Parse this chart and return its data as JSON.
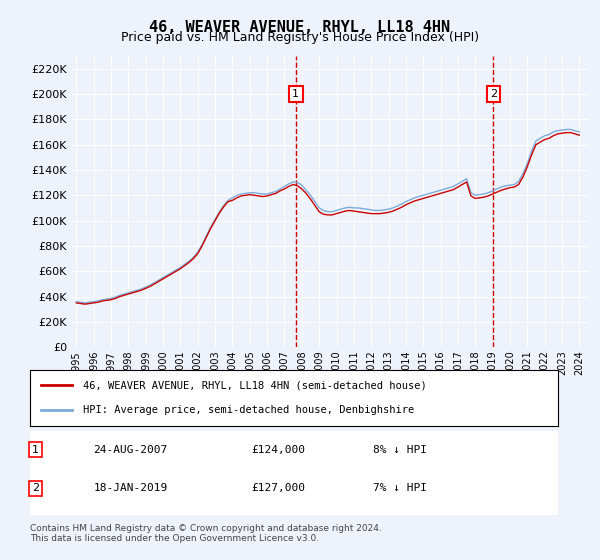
{
  "title": "46, WEAVER AVENUE, RHYL, LL18 4HN",
  "subtitle": "Price paid vs. HM Land Registry's House Price Index (HPI)",
  "ylabel": "",
  "bg_color": "#eef3fb",
  "plot_bg_color": "#eef3fb",
  "grid_color": "#ffffff",
  "hpi_color": "#7aacd6",
  "price_color": "#cc0000",
  "dashed_color": "#cc0000",
  "ylim": [
    0,
    230000
  ],
  "yticks": [
    0,
    20000,
    40000,
    60000,
    80000,
    100000,
    120000,
    140000,
    160000,
    180000,
    200000,
    220000
  ],
  "year_start": 1995,
  "year_end": 2024,
  "sale1_year": 2007.648,
  "sale1_price": 124000,
  "sale2_year": 2019.046,
  "sale2_price": 127000,
  "legend_label1": "46, WEAVER AVENUE, RHYL, LL18 4HN (semi-detached house)",
  "legend_label2": "HPI: Average price, semi-detached house, Denbighshire",
  "annotation1_label": "1",
  "annotation2_label": "2",
  "table_row1": [
    "1",
    "24-AUG-2007",
    "£124,000",
    "8% ↓ HPI"
  ],
  "table_row2": [
    "2",
    "18-JAN-2019",
    "£127,000",
    "7% ↓ HPI"
  ],
  "footer": "Contains HM Land Registry data © Crown copyright and database right 2024.\nThis data is licensed under the Open Government Licence v3.0.",
  "hpi_data_years": [
    1995.0,
    1995.25,
    1995.5,
    1995.75,
    1996.0,
    1996.25,
    1996.5,
    1996.75,
    1997.0,
    1997.25,
    1997.5,
    1997.75,
    1998.0,
    1998.25,
    1998.5,
    1998.75,
    1999.0,
    1999.25,
    1999.5,
    1999.75,
    2000.0,
    2000.25,
    2000.5,
    2000.75,
    2001.0,
    2001.25,
    2001.5,
    2001.75,
    2002.0,
    2002.25,
    2002.5,
    2002.75,
    2003.0,
    2003.25,
    2003.5,
    2003.75,
    2004.0,
    2004.25,
    2004.5,
    2004.75,
    2005.0,
    2005.25,
    2005.5,
    2005.75,
    2006.0,
    2006.25,
    2006.5,
    2006.75,
    2007.0,
    2007.25,
    2007.5,
    2007.75,
    2008.0,
    2008.25,
    2008.5,
    2008.75,
    2009.0,
    2009.25,
    2009.5,
    2009.75,
    2010.0,
    2010.25,
    2010.5,
    2010.75,
    2011.0,
    2011.25,
    2011.5,
    2011.75,
    2012.0,
    2012.25,
    2012.5,
    2012.75,
    2013.0,
    2013.25,
    2013.5,
    2013.75,
    2014.0,
    2014.25,
    2014.5,
    2014.75,
    2015.0,
    2015.25,
    2015.5,
    2015.75,
    2016.0,
    2016.25,
    2016.5,
    2016.75,
    2017.0,
    2017.25,
    2017.5,
    2017.75,
    2018.0,
    2018.25,
    2018.5,
    2018.75,
    2019.0,
    2019.25,
    2019.5,
    2019.75,
    2020.0,
    2020.25,
    2020.5,
    2020.75,
    2021.0,
    2021.25,
    2021.5,
    2021.75,
    2022.0,
    2022.25,
    2022.5,
    2022.75,
    2023.0,
    2023.25,
    2023.5,
    2023.75,
    2024.0
  ],
  "hpi_values": [
    36000,
    35500,
    35000,
    35500,
    36000,
    36500,
    37500,
    38000,
    38500,
    39500,
    41000,
    42000,
    43000,
    44000,
    45000,
    46000,
    47500,
    49000,
    51000,
    53000,
    55000,
    57000,
    59000,
    61000,
    63000,
    65500,
    68000,
    71000,
    75000,
    81000,
    88000,
    95000,
    101000,
    107000,
    112000,
    116000,
    118000,
    120000,
    121000,
    121500,
    122000,
    122000,
    121500,
    121000,
    121000,
    122000,
    123000,
    125000,
    127000,
    129000,
    130500,
    130000,
    128000,
    124000,
    120000,
    115000,
    110000,
    108000,
    107000,
    107000,
    108000,
    109000,
    110000,
    110500,
    110000,
    110000,
    109500,
    109000,
    108500,
    108000,
    108000,
    108500,
    109000,
    110000,
    111500,
    113000,
    115000,
    116500,
    118000,
    119000,
    120000,
    121000,
    122000,
    123000,
    124000,
    125000,
    126000,
    127000,
    129000,
    131000,
    133000,
    122000,
    120000,
    120500,
    121000,
    122000,
    123500,
    125000,
    126500,
    127500,
    128000,
    128500,
    131000,
    137000,
    145000,
    155000,
    163000,
    165000,
    167000,
    168000,
    170000,
    171000,
    171500,
    172000,
    172000,
    171000,
    170000
  ],
  "price_data_years": [
    1995.0,
    1995.25,
    1995.5,
    1995.75,
    1996.0,
    1996.25,
    1996.5,
    1996.75,
    1997.0,
    1997.25,
    1997.5,
    1997.75,
    1998.0,
    1998.25,
    1998.5,
    1998.75,
    1999.0,
    1999.25,
    1999.5,
    1999.75,
    2000.0,
    2000.25,
    2000.5,
    2000.75,
    2001.0,
    2001.25,
    2001.5,
    2001.75,
    2002.0,
    2002.25,
    2002.5,
    2002.75,
    2003.0,
    2003.25,
    2003.5,
    2003.75,
    2004.0,
    2004.25,
    2004.5,
    2004.75,
    2005.0,
    2005.25,
    2005.5,
    2005.75,
    2006.0,
    2006.25,
    2006.5,
    2006.75,
    2007.0,
    2007.25,
    2007.5,
    2007.75,
    2008.0,
    2008.25,
    2008.5,
    2008.75,
    2009.0,
    2009.25,
    2009.5,
    2009.75,
    2010.0,
    2010.25,
    2010.5,
    2010.75,
    2011.0,
    2011.25,
    2011.5,
    2011.75,
    2012.0,
    2012.25,
    2012.5,
    2012.75,
    2013.0,
    2013.25,
    2013.5,
    2013.75,
    2014.0,
    2014.25,
    2014.5,
    2014.75,
    2015.0,
    2015.25,
    2015.5,
    2015.75,
    2016.0,
    2016.25,
    2016.5,
    2016.75,
    2017.0,
    2017.25,
    2017.5,
    2017.75,
    2018.0,
    2018.25,
    2018.5,
    2018.75,
    2019.0,
    2019.25,
    2019.5,
    2019.75,
    2020.0,
    2020.25,
    2020.5,
    2020.75,
    2021.0,
    2021.25,
    2021.5,
    2021.75,
    2022.0,
    2022.25,
    2022.5,
    2022.75,
    2023.0,
    2023.25,
    2023.5,
    2023.75,
    2024.0
  ],
  "price_indexed_values": [
    35000,
    34500,
    34000,
    34500,
    35000,
    35500,
    36500,
    37000,
    37500,
    38500,
    40000,
    41000,
    42000,
    43000,
    44000,
    45000,
    46500,
    48000,
    50000,
    52000,
    54000,
    56000,
    58000,
    60000,
    62000,
    64500,
    67000,
    70000,
    74000,
    80000,
    87000,
    94000,
    100000,
    106000,
    111000,
    115000,
    116000,
    118000,
    119500,
    120000,
    120500,
    120000,
    119500,
    119000,
    119500,
    120500,
    121500,
    123500,
    125000,
    127000,
    128500,
    127500,
    125000,
    121500,
    117000,
    112000,
    107000,
    105000,
    104500,
    104500,
    105500,
    106500,
    107500,
    108000,
    107500,
    107000,
    106500,
    106000,
    105500,
    105500,
    105500,
    106000,
    106500,
    107500,
    109000,
    110500,
    112500,
    114000,
    115500,
    116500,
    117500,
    118500,
    119500,
    120500,
    121500,
    122500,
    123500,
    124500,
    126500,
    128500,
    130500,
    119500,
    117500,
    118000,
    118500,
    119500,
    121000,
    122500,
    124000,
    125000,
    126000,
    126500,
    128500,
    134500,
    142500,
    152000,
    160000,
    162000,
    164000,
    165000,
    167000,
    168500,
    169000,
    169500,
    169500,
    168500,
    167500
  ]
}
